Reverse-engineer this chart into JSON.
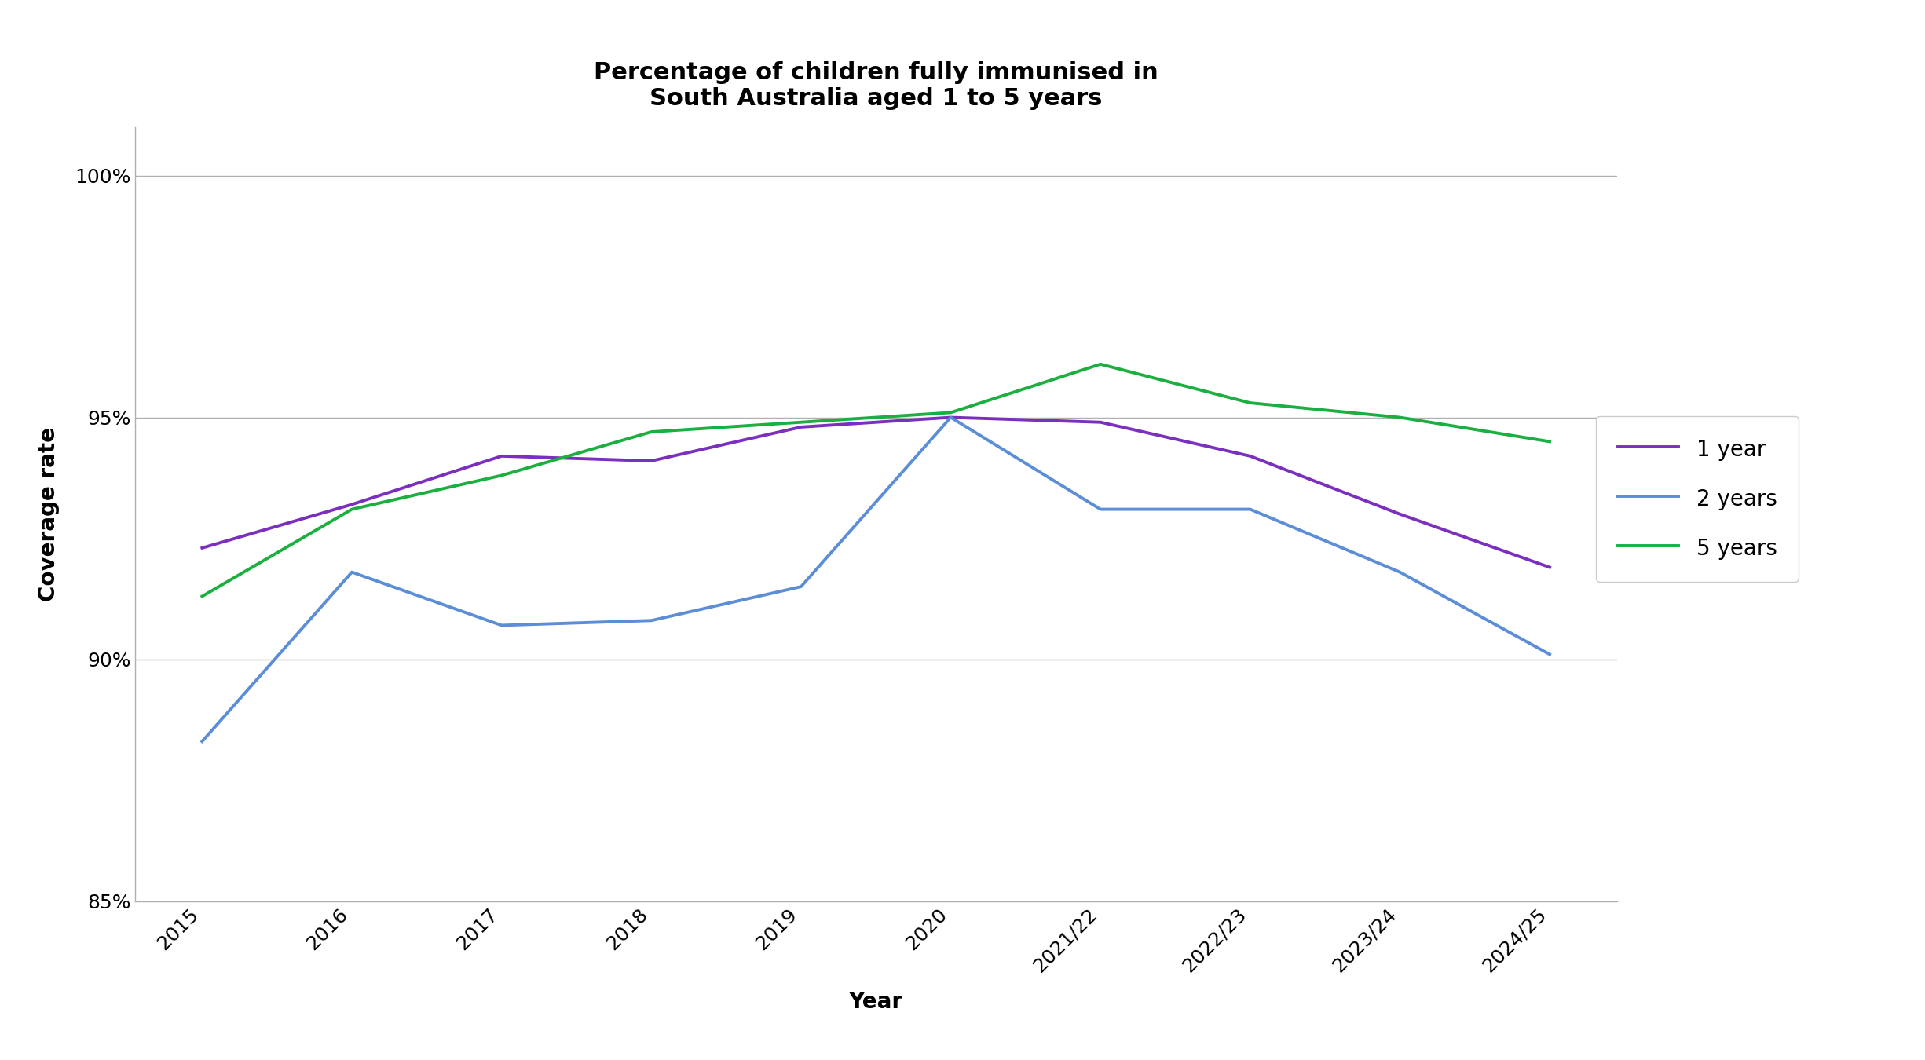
{
  "title": "Percentage of children fully immunised in\nSouth Australia aged 1 to 5 years",
  "xlabel": "Year",
  "ylabel": "Coverage rate",
  "x_labels": [
    "2015",
    "2016",
    "2017",
    "2018",
    "2019",
    "2020",
    "2021/22",
    "2022/23",
    "2023/24",
    "2024/25"
  ],
  "series": [
    {
      "label": "1 year",
      "values": [
        92.3,
        93.2,
        94.2,
        94.1,
        94.8,
        95.0,
        94.9,
        94.2,
        93.0,
        91.9
      ],
      "color": "#7B2FBE"
    },
    {
      "label": "2 years",
      "values": [
        88.3,
        91.8,
        90.7,
        90.8,
        91.5,
        95.0,
        93.1,
        93.1,
        91.8,
        90.1
      ],
      "color": "#5B8ED6"
    },
    {
      "label": "5 years",
      "values": [
        91.3,
        93.1,
        93.8,
        94.7,
        94.9,
        95.1,
        96.1,
        95.3,
        95.0,
        94.5
      ],
      "color": "#1AAF3F"
    }
  ],
  "ylim": [
    85,
    101
  ],
  "yticks": [
    85,
    90,
    95,
    100
  ],
  "ytick_labels": [
    "85%",
    "90%",
    "95%",
    "100%"
  ],
  "linewidth": 2.8,
  "title_fontsize": 22,
  "axis_label_fontsize": 20,
  "tick_fontsize": 18,
  "legend_fontsize": 20,
  "background_color": "#ffffff",
  "grid_color": "#b0b0b0",
  "spine_color": "#b0b0b0"
}
